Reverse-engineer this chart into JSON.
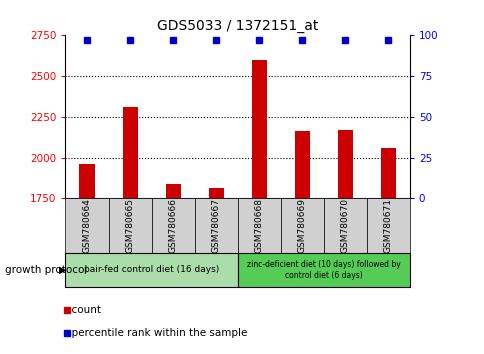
{
  "title": "GDS5033 / 1372151_at",
  "categories": [
    "GSM780664",
    "GSM780665",
    "GSM780666",
    "GSM780667",
    "GSM780668",
    "GSM780669",
    "GSM780670",
    "GSM780671"
  ],
  "bar_values": [
    1960,
    2310,
    1840,
    1810,
    2600,
    2160,
    2170,
    2060
  ],
  "percentile_values": [
    97,
    97,
    97,
    97,
    97,
    97,
    97,
    97
  ],
  "ylim_left": [
    1750,
    2750
  ],
  "ylim_right": [
    0,
    100
  ],
  "yticks_left": [
    1750,
    2000,
    2250,
    2500,
    2750
  ],
  "yticks_right": [
    0,
    25,
    50,
    75,
    100
  ],
  "bar_color": "#cc0000",
  "percentile_color": "#0000cc",
  "group1_label": "pair-fed control diet (16 days)",
  "group2_label": "zinc-deficient diet (10 days) followed by\ncontrol diet (6 days)",
  "group1_color": "#aaddaa",
  "group2_color": "#55cc55",
  "protocol_label": "growth protocol",
  "legend_count": "count",
  "legend_percentile": "percentile rank within the sample",
  "tick_bg_color": "#d0d0d0",
  "bar_width": 0.35
}
